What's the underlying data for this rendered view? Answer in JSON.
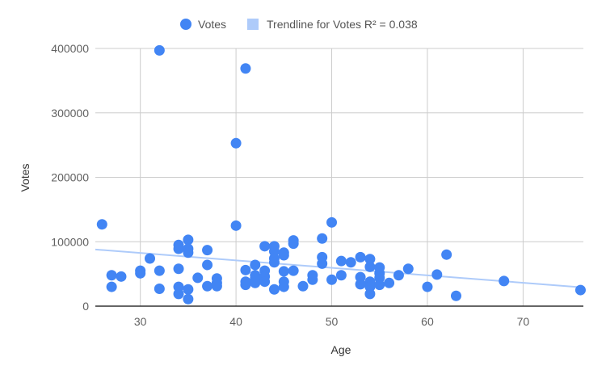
{
  "chart_data": {
    "type": "scatter",
    "title": "",
    "xlabel": "Age",
    "ylabel": "Votes",
    "xlim": [
      25.3,
      76.3
    ],
    "ylim": [
      0,
      400000
    ],
    "xticks": [
      30,
      40,
      50,
      60,
      70
    ],
    "yticks": [
      0,
      100000,
      200000,
      300000,
      400000
    ],
    "xtick_labels": [
      "30",
      "40",
      "50",
      "60",
      "70"
    ],
    "ytick_labels": [
      "0",
      "100000",
      "200000",
      "300000",
      "400000"
    ],
    "grid": true,
    "legend_position": "top",
    "legend": [
      {
        "label": "Votes",
        "marker": "circle",
        "color": "#4285f4"
      },
      {
        "label": "Trendline for Votes R² = 0.038",
        "marker": "square",
        "color": "#aecbfa"
      }
    ],
    "series": [
      {
        "name": "Votes",
        "color": "#4285f4",
        "points": [
          [
            26,
            127000
          ],
          [
            27,
            48000
          ],
          [
            27,
            30000
          ],
          [
            28,
            46000
          ],
          [
            30,
            55000
          ],
          [
            30,
            51000
          ],
          [
            31,
            74000
          ],
          [
            32,
            397000
          ],
          [
            32,
            55000
          ],
          [
            32,
            27000
          ],
          [
            34,
            95000
          ],
          [
            34,
            89000
          ],
          [
            34,
            58000
          ],
          [
            34,
            30000
          ],
          [
            34,
            19000
          ],
          [
            35,
            103000
          ],
          [
            35,
            89000
          ],
          [
            35,
            83000
          ],
          [
            35,
            26000
          ],
          [
            35,
            11000
          ],
          [
            36,
            44000
          ],
          [
            37,
            87000
          ],
          [
            37,
            64000
          ],
          [
            37,
            31000
          ],
          [
            38,
            43000
          ],
          [
            38,
            36000
          ],
          [
            38,
            31000
          ],
          [
            40,
            253000
          ],
          [
            40,
            125000
          ],
          [
            41,
            369000
          ],
          [
            41,
            56000
          ],
          [
            41,
            38000
          ],
          [
            41,
            33000
          ],
          [
            42,
            64000
          ],
          [
            42,
            48000
          ],
          [
            42,
            43000
          ],
          [
            42,
            36000
          ],
          [
            43,
            93000
          ],
          [
            43,
            55000
          ],
          [
            43,
            46000
          ],
          [
            43,
            38000
          ],
          [
            44,
            93000
          ],
          [
            44,
            85000
          ],
          [
            44,
            74000
          ],
          [
            44,
            68000
          ],
          [
            44,
            26000
          ],
          [
            45,
            83000
          ],
          [
            45,
            79000
          ],
          [
            45,
            54000
          ],
          [
            45,
            38000
          ],
          [
            45,
            30000
          ],
          [
            46,
            102000
          ],
          [
            46,
            97000
          ],
          [
            46,
            55000
          ],
          [
            47,
            31000
          ],
          [
            48,
            48000
          ],
          [
            48,
            41000
          ],
          [
            49,
            105000
          ],
          [
            49,
            76000
          ],
          [
            49,
            66000
          ],
          [
            50,
            130000
          ],
          [
            50,
            41000
          ],
          [
            51,
            70000
          ],
          [
            51,
            48000
          ],
          [
            52,
            68000
          ],
          [
            53,
            76000
          ],
          [
            53,
            45000
          ],
          [
            53,
            34000
          ],
          [
            54,
            73000
          ],
          [
            54,
            61000
          ],
          [
            54,
            38000
          ],
          [
            54,
            30000
          ],
          [
            54,
            19000
          ],
          [
            55,
            60000
          ],
          [
            55,
            51000
          ],
          [
            55,
            44000
          ],
          [
            55,
            33000
          ],
          [
            56,
            36000
          ],
          [
            57,
            48000
          ],
          [
            58,
            58000
          ],
          [
            60,
            30000
          ],
          [
            61,
            49000
          ],
          [
            62,
            80000
          ],
          [
            63,
            16000
          ],
          [
            68,
            39000
          ],
          [
            76,
            25000
          ]
        ]
      }
    ],
    "trendline": {
      "name": "Trendline for Votes",
      "r_squared": 0.038,
      "color": "#aecbfa",
      "points": [
        [
          25.3,
          88000
        ],
        [
          76.3,
          29000
        ]
      ]
    }
  }
}
